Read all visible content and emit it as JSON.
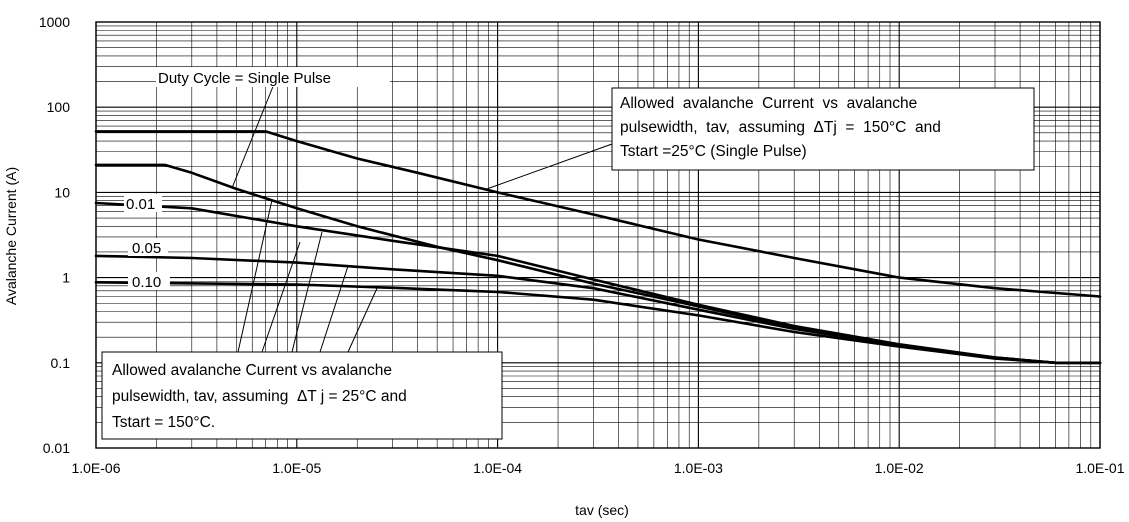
{
  "chart_data": {
    "type": "line",
    "xlabel": "tav (sec)",
    "ylabel": "Avalanche Current (A)",
    "x_scale": "log",
    "y_scale": "log",
    "xlim": [
      1e-06,
      0.1
    ],
    "ylim": [
      0.01,
      1000
    ],
    "x_ticks": [
      "1.0E-06",
      "1.0E-05",
      "1.0E-04",
      "1.0E-03",
      "1.0E-02",
      "1.0E-01"
    ],
    "y_ticks": [
      "0.01",
      "0.1",
      "1",
      "10",
      "100",
      "1000"
    ],
    "grid": true,
    "series": [
      {
        "name": "Single Pulse (ΔTj = 150°C)",
        "points": [
          [
            1e-06,
            52
          ],
          [
            7e-06,
            52
          ],
          [
            1e-05,
            40
          ],
          [
            2e-05,
            25
          ],
          [
            4e-05,
            17
          ],
          [
            0.0001,
            10
          ],
          [
            0.0003,
            5.5
          ],
          [
            0.001,
            2.8
          ],
          [
            0.003,
            1.7
          ],
          [
            0.01,
            1
          ],
          [
            0.03,
            0.75
          ],
          [
            0.1,
            0.6
          ]
        ]
      },
      {
        "name": "Duty Cycle = Single Pulse",
        "points": [
          [
            1e-06,
            21
          ],
          [
            2.2e-06,
            21
          ],
          [
            3e-06,
            17
          ],
          [
            5e-06,
            11
          ],
          [
            1e-05,
            6.5
          ],
          [
            2e-05,
            4
          ],
          [
            5e-05,
            2.3
          ],
          [
            0.0001,
            1.6
          ],
          [
            0.0003,
            0.85
          ],
          [
            0.001,
            0.46
          ],
          [
            0.003,
            0.26
          ],
          [
            0.01,
            0.16
          ],
          [
            0.03,
            0.115
          ],
          [
            0.06,
            0.1
          ],
          [
            0.1,
            0.1
          ]
        ]
      },
      {
        "name": "0.01",
        "points": [
          [
            1e-06,
            7.5
          ],
          [
            3e-06,
            6.5
          ],
          [
            1e-05,
            4
          ],
          [
            3e-05,
            2.7
          ],
          [
            0.0001,
            1.8
          ],
          [
            0.0003,
            0.95
          ],
          [
            0.001,
            0.48
          ],
          [
            0.003,
            0.27
          ],
          [
            0.01,
            0.165
          ],
          [
            0.03,
            0.115
          ],
          [
            0.06,
            0.1
          ],
          [
            0.1,
            0.1
          ]
        ]
      },
      {
        "name": "0.05",
        "points": [
          [
            1e-06,
            1.8
          ],
          [
            3e-06,
            1.7
          ],
          [
            1e-05,
            1.5
          ],
          [
            3e-05,
            1.25
          ],
          [
            0.0001,
            1.05
          ],
          [
            0.0003,
            0.75
          ],
          [
            0.001,
            0.42
          ],
          [
            0.003,
            0.25
          ],
          [
            0.01,
            0.16
          ],
          [
            0.03,
            0.115
          ],
          [
            0.06,
            0.1
          ],
          [
            0.1,
            0.1
          ]
        ]
      },
      {
        "name": "0.10",
        "points": [
          [
            1e-06,
            0.88
          ],
          [
            1e-05,
            0.83
          ],
          [
            3e-05,
            0.76
          ],
          [
            0.0001,
            0.68
          ],
          [
            0.0003,
            0.55
          ],
          [
            0.001,
            0.36
          ],
          [
            0.003,
            0.23
          ],
          [
            0.01,
            0.155
          ],
          [
            0.03,
            0.112
          ],
          [
            0.06,
            0.1
          ],
          [
            0.1,
            0.1
          ]
        ]
      }
    ],
    "labels": {
      "single_pulse": "Duty Cycle = Single Pulse",
      "d001": "0.01",
      "d005": "0.05",
      "d010": "0.10"
    },
    "annotations": {
      "upper": [
        "Allowed  avalanche  Current  vs  avalanche",
        "pulsewidth,  tav,  assuming  ΔTj  =  150°C  and",
        "Tstart =25°C (Single Pulse)"
      ],
      "lower": [
        "Allowed avalanche Current vs avalanche",
        "pulsewidth, tav, assuming  ΔT j = 25°C and",
        "Tstart = 150°C."
      ]
    }
  }
}
